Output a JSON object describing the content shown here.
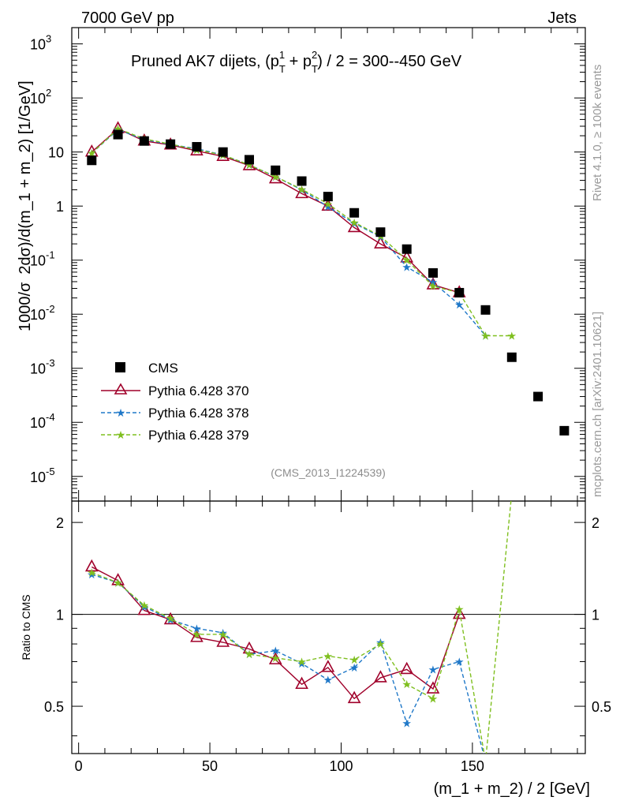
{
  "header": {
    "left": "7000 GeV pp",
    "right": "Jets"
  },
  "side_labels": {
    "rivet": "Rivet 4.1.0, ≥ 100k events",
    "mcplots": "mcplots.cern.ch [arXiv:2401.10621]"
  },
  "analysis_tag": "(CMS_2013_I1224539)",
  "colors": {
    "cms": "#000000",
    "p370": "#a0002a",
    "p378": "#1f78c8",
    "p379": "#7fbf1f"
  },
  "chart_data": [
    {
      "type": "scatter",
      "panel": "main",
      "title": "Pruned AK7 dijets, (p_T^1 + p_T^2) / 2 = 300--450 GeV",
      "title_parts": {
        "a": "Pruned AK7 dijets, (p",
        "b": "T",
        "c": "1",
        "d": " + p",
        "e": "T",
        "f": "2",
        "g": ") / 2 = 300--450 GeV"
      },
      "ylabel": "1000/σ  2dσ)/d(m_1 + m_2) [1/GeV]",
      "ylabel_parts": {
        "a": "1000/σ",
        "b": "2dσ)/d(m_1 + m_2) [1/GeV]"
      },
      "yscale": "log",
      "ylim": [
        3.5e-06,
        2000
      ],
      "xlim": [
        -2.6,
        193
      ],
      "y_ticks": [
        {
          "base": "10",
          "exp": "-5",
          "v": 1e-05
        },
        {
          "base": "10",
          "exp": "-4",
          "v": 0.0001
        },
        {
          "base": "10",
          "exp": "-3",
          "v": 0.001
        },
        {
          "base": "10",
          "exp": "-2",
          "v": 0.01
        },
        {
          "base": "10",
          "exp": "-1",
          "v": 0.1
        },
        {
          "base": "1",
          "exp": "",
          "v": 1
        },
        {
          "base": "10",
          "exp": "",
          "v": 10
        },
        {
          "base": "10",
          "exp": "2",
          "v": 100
        },
        {
          "base": "10",
          "exp": "3",
          "v": 1000
        }
      ],
      "legend": [
        "CMS",
        "Pythia 6.428 370",
        "Pythia 6.428 378",
        "Pythia 6.428 379"
      ],
      "x": [
        5,
        15,
        25,
        35,
        45,
        55,
        65,
        75,
        85,
        95,
        105,
        115,
        125,
        135,
        145,
        155,
        165,
        175,
        185
      ],
      "series": [
        {
          "name": "CMS",
          "values": [
            7,
            21,
            16,
            14,
            12.5,
            10,
            7.2,
            4.6,
            2.9,
            1.5,
            0.75,
            0.33,
            0.16,
            0.058,
            0.025,
            0.012,
            0.0016,
            0.0003,
            7e-05
          ]
        },
        {
          "name": "Pythia 6.428 370",
          "values": [
            10,
            27,
            16,
            13.5,
            10.5,
            8.3,
            5.6,
            3.2,
            1.7,
            1.0,
            0.4,
            0.2,
            0.11,
            0.035,
            0.025,
            null,
            null,
            null,
            null
          ]
        },
        {
          "name": "Pythia 6.428 378",
          "values": [
            9.5,
            26,
            17,
            13.8,
            11.5,
            8.8,
            5.8,
            3.5,
            2.0,
            0.97,
            0.48,
            0.27,
            0.075,
            0.039,
            0.015,
            0.004,
            null,
            null,
            null
          ]
        },
        {
          "name": "Pythia 6.428 379",
          "values": [
            9.5,
            27,
            17.5,
            14,
            11,
            8.8,
            5.8,
            3.5,
            2.05,
            1.1,
            0.5,
            0.28,
            0.1,
            0.033,
            0.025,
            0.004,
            0.004,
            null,
            null
          ]
        }
      ]
    },
    {
      "type": "line",
      "panel": "ratio",
      "ylabel": "Ratio to CMS",
      "xlabel": "(m_1 + m_2) / 2 [GeV]",
      "ylim": [
        0.35,
        2.35
      ],
      "xlim": [
        -2.6,
        193
      ],
      "x_ticks": [
        "0",
        "50",
        "100",
        "150"
      ],
      "y_ticks": [
        "0.5",
        "1",
        "2"
      ],
      "x": [
        5,
        15,
        25,
        35,
        45,
        55,
        65,
        75,
        85,
        95,
        105,
        115,
        125,
        135,
        145,
        155,
        165
      ],
      "series": [
        {
          "name": "Pythia 6.428 370",
          "values": [
            1.43,
            1.29,
            1.03,
            0.96,
            0.84,
            0.81,
            0.77,
            0.71,
            0.59,
            0.67,
            0.53,
            0.62,
            0.66,
            0.57,
            1.0,
            null,
            null
          ]
        },
        {
          "name": "Pythia 6.428 378",
          "values": [
            1.35,
            1.27,
            1.06,
            0.96,
            0.9,
            0.87,
            0.74,
            0.76,
            0.69,
            0.61,
            0.67,
            0.81,
            0.44,
            0.66,
            0.7,
            0.33,
            null
          ]
        },
        {
          "name": "Pythia 6.428 379",
          "values": [
            1.37,
            1.27,
            1.07,
            0.97,
            0.86,
            0.86,
            0.74,
            0.72,
            0.7,
            0.73,
            0.71,
            0.8,
            0.59,
            0.53,
            1.04,
            0.33,
            2.5
          ]
        }
      ]
    }
  ]
}
